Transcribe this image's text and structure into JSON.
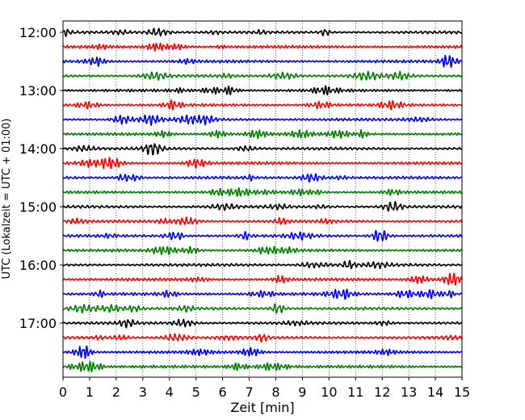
{
  "chart_data": {
    "type": "line",
    "title": "",
    "xlabel": "Zeit  [min]",
    "ylabel": "UTC (Lokalzeit = UTC + 01:00)",
    "xlim": [
      0,
      15
    ],
    "x_ticks": [
      0,
      1,
      2,
      3,
      4,
      5,
      6,
      7,
      8,
      9,
      10,
      11,
      12,
      13,
      14,
      15
    ],
    "x_tick_labels": [
      "0",
      "1",
      "2",
      "3",
      "4",
      "5",
      "6",
      "7",
      "8",
      "9",
      "10",
      "11",
      "12",
      "13",
      "14",
      "15"
    ],
    "y_tick_labels": [
      "12:00",
      "13:00",
      "14:00",
      "15:00",
      "16:00",
      "17:00"
    ],
    "trace_start_times": [
      "12:00",
      "12:15",
      "12:30",
      "12:45",
      "13:00",
      "13:15",
      "13:30",
      "13:45",
      "14:00",
      "14:15",
      "14:30",
      "14:45",
      "15:00",
      "15:15",
      "15:30",
      "15:45",
      "16:00",
      "16:15",
      "16:30",
      "16:45",
      "17:00",
      "17:15",
      "17:30",
      "17:45"
    ],
    "trace_colors": [
      "#000000",
      "#ff0000",
      "#0000ff",
      "#008000"
    ],
    "grid": "vertical dotted",
    "legend": "none"
  }
}
